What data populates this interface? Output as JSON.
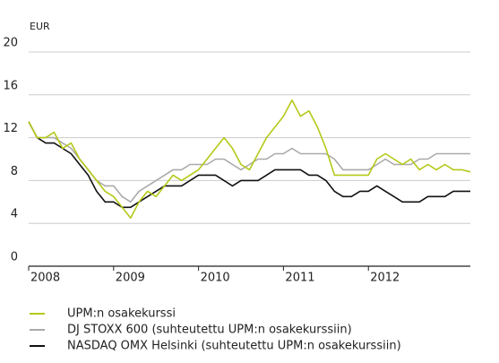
{
  "chart_data": {
    "type": "line",
    "ylabel": "EUR",
    "x": [
      2008,
      2008.1,
      2008.2,
      2008.3,
      2008.4,
      2008.5,
      2008.6,
      2008.7,
      2008.8,
      2008.9,
      2009,
      2009.1,
      2009.2,
      2009.3,
      2009.4,
      2009.5,
      2009.6,
      2009.7,
      2009.8,
      2009.9,
      2010,
      2010.1,
      2010.2,
      2010.3,
      2010.4,
      2010.5,
      2010.6,
      2010.7,
      2010.8,
      2010.9,
      2011,
      2011.1,
      2011.2,
      2011.3,
      2011.4,
      2011.5,
      2011.6,
      2011.7,
      2011.8,
      2011.9,
      2012,
      2012.1,
      2012.2,
      2012.3,
      2012.4,
      2012.5,
      2012.6,
      2012.7,
      2012.8,
      2012.9,
      2013,
      2013.1,
      2013.2
    ],
    "xlim": [
      2008,
      2013.2
    ],
    "xticks": [
      2008,
      2009,
      2010,
      2011,
      2012
    ],
    "ylim": [
      0,
      20
    ],
    "yticks": [
      0,
      4,
      8,
      12,
      16,
      20
    ],
    "grid": true,
    "series": [
      {
        "name": "UPM:n osakekurssi",
        "color": "#b5c918",
        "values": [
          13.5,
          12,
          12,
          12.5,
          11,
          11.5,
          10,
          9,
          8,
          7,
          6.5,
          5.5,
          4.5,
          6,
          7,
          6.5,
          7.5,
          8.5,
          8,
          8.5,
          9,
          10,
          11,
          12,
          11,
          9.5,
          9,
          10.5,
          12,
          13,
          14,
          15.5,
          14,
          14.5,
          13,
          11,
          8.5,
          8.5,
          8.5,
          8.5,
          8.5,
          10,
          10.5,
          10,
          9.5,
          10,
          9,
          9.5,
          9,
          9.5,
          9,
          9,
          8.8
        ]
      },
      {
        "name": "DJ STOXX 600 (suhteutettu UPM:n osakekurssiin)",
        "color": "#aaaaaa",
        "values": [
          13.5,
          12,
          12,
          12,
          11.5,
          11,
          10,
          9,
          8,
          7.5,
          7.5,
          6.5,
          6,
          7,
          7.5,
          8,
          8.5,
          9,
          9,
          9.5,
          9.5,
          9.5,
          10,
          10,
          9.5,
          9,
          9.5,
          10,
          10,
          10.5,
          10.5,
          11,
          10.5,
          10.5,
          10.5,
          10.5,
          10,
          9,
          9,
          9,
          9,
          9.5,
          10,
          9.5,
          9.5,
          9.5,
          10,
          10,
          10.5,
          10.5,
          10.5,
          10.5,
          10.5
        ]
      },
      {
        "name": "NASDAQ OMX Helsinki (suhteutettu UPM:n osakekurssiin)",
        "color": "#111111",
        "values": [
          13.5,
          12,
          11.5,
          11.5,
          11,
          10.5,
          9.5,
          8.5,
          7,
          6,
          6,
          5.5,
          5.5,
          6,
          6.5,
          7,
          7.5,
          7.5,
          7.5,
          8,
          8.5,
          8.5,
          8.5,
          8,
          7.5,
          8,
          8,
          8,
          8.5,
          9,
          9,
          9,
          9,
          8.5,
          8.5,
          8,
          7,
          6.5,
          6.5,
          7,
          7,
          7.5,
          7,
          6.5,
          6,
          6,
          6,
          6.5,
          6.5,
          6.5,
          7,
          7,
          7
        ]
      }
    ]
  }
}
